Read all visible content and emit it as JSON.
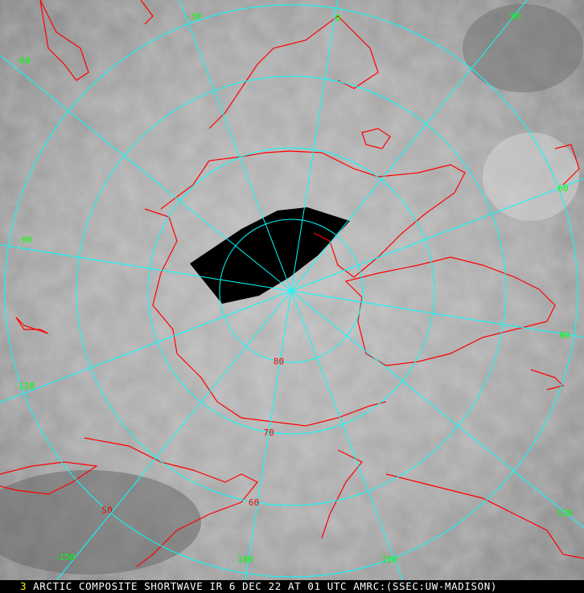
{
  "caption": {
    "frame_number": "3",
    "text": "ARCTIC COMPOSITE SHORTWAVE IR 6 DEC 22 AT 01 UTC AMRC:(SSEC:UW-MADISON)"
  },
  "map": {
    "projection": "polar stereographic (north pole)",
    "longitude_labels": [
      "0",
      "30",
      "60",
      "90",
      "120",
      "150",
      "180",
      "-150",
      "-120",
      "-90",
      "-60",
      "-30"
    ],
    "longitude_values": [
      0,
      30,
      60,
      90,
      120,
      150,
      180,
      -150,
      -120,
      -90,
      -60,
      -30
    ],
    "latitude_labels": [
      "80",
      "70",
      "60",
      "50"
    ],
    "latitude_values": [
      80,
      70,
      60,
      50
    ],
    "colors": {
      "graticule": "#00ffff",
      "coastline": "#ff0000",
      "longitude_label": "#00ff00",
      "latitude_label": "#ff0000",
      "frame_number": "#ffff00",
      "caption_text": "#ffffff",
      "no_data": "#000000"
    }
  }
}
